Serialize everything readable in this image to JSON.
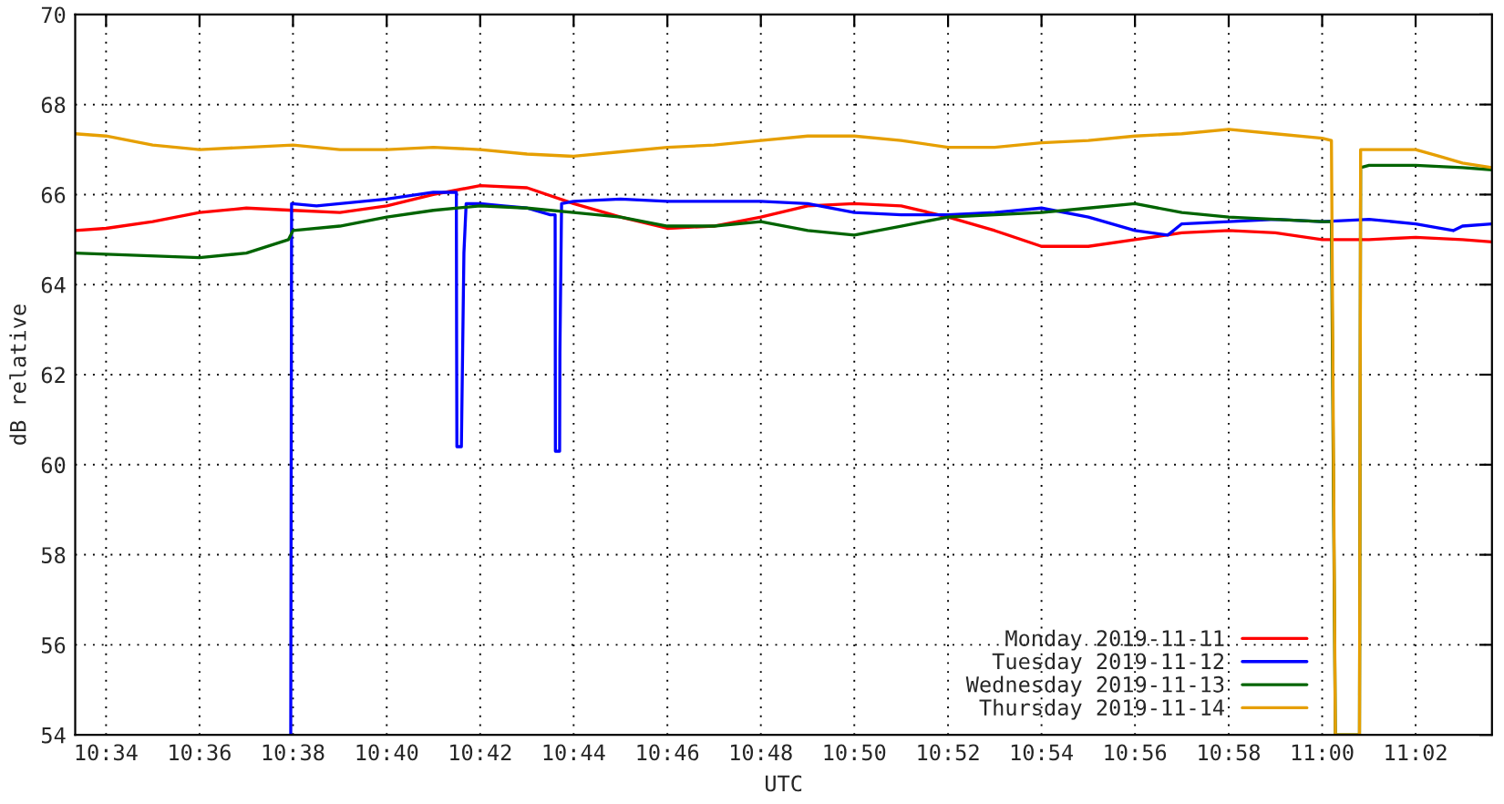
{
  "chart_data": {
    "type": "line",
    "xlabel": "UTC",
    "ylabel": "dB relative",
    "xlim": [
      10.5557,
      11.0605
    ],
    "ylim": [
      54,
      70
    ],
    "yticks": [
      54,
      56,
      58,
      60,
      62,
      64,
      66,
      68,
      70
    ],
    "xticks": [
      {
        "value": 10.5667,
        "label": "10:34"
      },
      {
        "value": 10.6,
        "label": "10:36"
      },
      {
        "value": 10.6333,
        "label": "10:38"
      },
      {
        "value": 10.6667,
        "label": "10:40"
      },
      {
        "value": 10.7,
        "label": "10:42"
      },
      {
        "value": 10.7333,
        "label": "10:44"
      },
      {
        "value": 10.7667,
        "label": "10:46"
      },
      {
        "value": 10.8,
        "label": "10:48"
      },
      {
        "value": 10.8333,
        "label": "10:50"
      },
      {
        "value": 10.8667,
        "label": "10:52"
      },
      {
        "value": 10.9,
        "label": "10:54"
      },
      {
        "value": 10.9333,
        "label": "10:56"
      },
      {
        "value": 10.9667,
        "label": "10:58"
      },
      {
        "value": 11.0,
        "label": "11:00"
      },
      {
        "value": 11.0333,
        "label": "11:02"
      }
    ],
    "grid": true,
    "legend": "bottom right",
    "marker": "none",
    "line_style": "solid",
    "series": [
      {
        "name": "Monday 2019-11-11",
        "color": "#ff0000",
        "x": [
          10.5557,
          10.5667,
          10.5833,
          10.6,
          10.6167,
          10.6333,
          10.65,
          10.6667,
          10.6833,
          10.7,
          10.7167,
          10.7333,
          10.75,
          10.7667,
          10.7833,
          10.8,
          10.8167,
          10.8333,
          10.85,
          10.8667,
          10.8833,
          10.9,
          10.9167,
          10.9333,
          10.95,
          10.9667,
          10.9833,
          11.0,
          11.0167,
          11.0333,
          11.05,
          11.0605
        ],
        "values": [
          65.2,
          65.25,
          65.4,
          65.6,
          65.7,
          65.65,
          65.6,
          65.75,
          66.0,
          66.2,
          66.15,
          65.8,
          65.5,
          65.25,
          65.3,
          65.5,
          65.75,
          65.8,
          65.75,
          65.5,
          65.2,
          64.85,
          64.85,
          65.0,
          65.15,
          65.2,
          65.15,
          65.0,
          65.0,
          65.05,
          65.0,
          64.95
        ]
      },
      {
        "name": "Tuesday 2019-11-12",
        "color": "#0000ff",
        "x": [
          10.6325,
          10.6328,
          10.6417,
          10.65,
          10.6667,
          10.6833,
          10.69,
          10.6915,
          10.6916,
          10.6917,
          10.6933,
          10.6942,
          10.695,
          10.6967,
          10.7,
          10.7083,
          10.7167,
          10.725,
          10.7267,
          10.7268,
          10.7283,
          10.7284,
          10.729,
          10.7333,
          10.75,
          10.7667,
          10.7833,
          10.8,
          10.8167,
          10.8333,
          10.85,
          10.8667,
          10.8833,
          10.9,
          10.9167,
          10.9333,
          10.945,
          10.95,
          10.9667,
          10.9833,
          11.0,
          11.0167,
          11.0333,
          11.0467,
          11.05,
          11.0605
        ],
        "values": [
          54,
          65.8,
          65.75,
          65.8,
          65.9,
          66.05,
          66.05,
          66.05,
          62.8,
          60.4,
          60.4,
          64.7,
          65.8,
          65.8,
          65.8,
          65.75,
          65.7,
          65.55,
          65.55,
          60.3,
          60.3,
          62.5,
          65.8,
          65.85,
          65.9,
          65.85,
          65.85,
          65.85,
          65.8,
          65.6,
          65.55,
          65.55,
          65.6,
          65.7,
          65.5,
          65.2,
          65.1,
          65.35,
          65.4,
          65.45,
          65.4,
          65.45,
          65.35,
          65.2,
          65.3,
          65.35
        ]
      },
      {
        "name": "Wednesday 2019-11-13",
        "color": "#006400",
        "x": [
          10.5557,
          10.6,
          10.6167,
          10.6317,
          10.6333,
          10.65,
          10.6667,
          10.6833,
          10.7,
          10.7167,
          10.7333,
          10.75,
          10.7667,
          10.7833,
          10.8,
          10.8167,
          10.8333,
          10.85,
          10.8667,
          10.8833,
          10.9,
          10.9167,
          10.9333,
          10.95,
          10.9667,
          10.9833,
          11.0,
          11.0033,
          11.0047,
          11.0133,
          11.0137,
          11.0167,
          11.0333,
          11.05,
          11.0605
        ],
        "values": [
          64.7,
          64.6,
          64.7,
          65.0,
          65.2,
          65.3,
          65.5,
          65.65,
          65.75,
          65.7,
          65.6,
          65.5,
          65.3,
          65.3,
          65.4,
          65.2,
          65.1,
          65.3,
          65.5,
          65.55,
          65.6,
          65.7,
          65.8,
          65.6,
          65.5,
          65.45,
          65.4,
          65.4,
          54,
          54,
          66.6,
          66.65,
          66.65,
          66.6,
          66.55
        ]
      },
      {
        "name": "Thursday 2019-11-14",
        "color": "#e69f00",
        "x": [
          10.5557,
          10.5667,
          10.5833,
          10.6,
          10.6167,
          10.6333,
          10.65,
          10.6667,
          10.6833,
          10.7,
          10.7167,
          10.7333,
          10.75,
          10.7667,
          10.7833,
          10.8,
          10.8167,
          10.8333,
          10.85,
          10.8667,
          10.8833,
          10.9,
          10.9167,
          10.9333,
          10.95,
          10.9667,
          10.9833,
          11.0,
          11.0033,
          11.0047,
          11.0133,
          11.0137,
          11.025,
          11.0333,
          11.0417,
          11.05,
          11.0605
        ],
        "values": [
          67.35,
          67.3,
          67.1,
          67.0,
          67.05,
          67.1,
          67.0,
          67.0,
          67.05,
          67.0,
          66.9,
          66.85,
          66.95,
          67.05,
          67.1,
          67.2,
          67.3,
          67.3,
          67.2,
          67.05,
          67.05,
          67.15,
          67.2,
          67.3,
          67.35,
          67.45,
          67.35,
          67.25,
          67.2,
          54,
          54,
          67.0,
          67.0,
          67.0,
          66.85,
          66.7,
          66.6
        ]
      }
    ]
  }
}
